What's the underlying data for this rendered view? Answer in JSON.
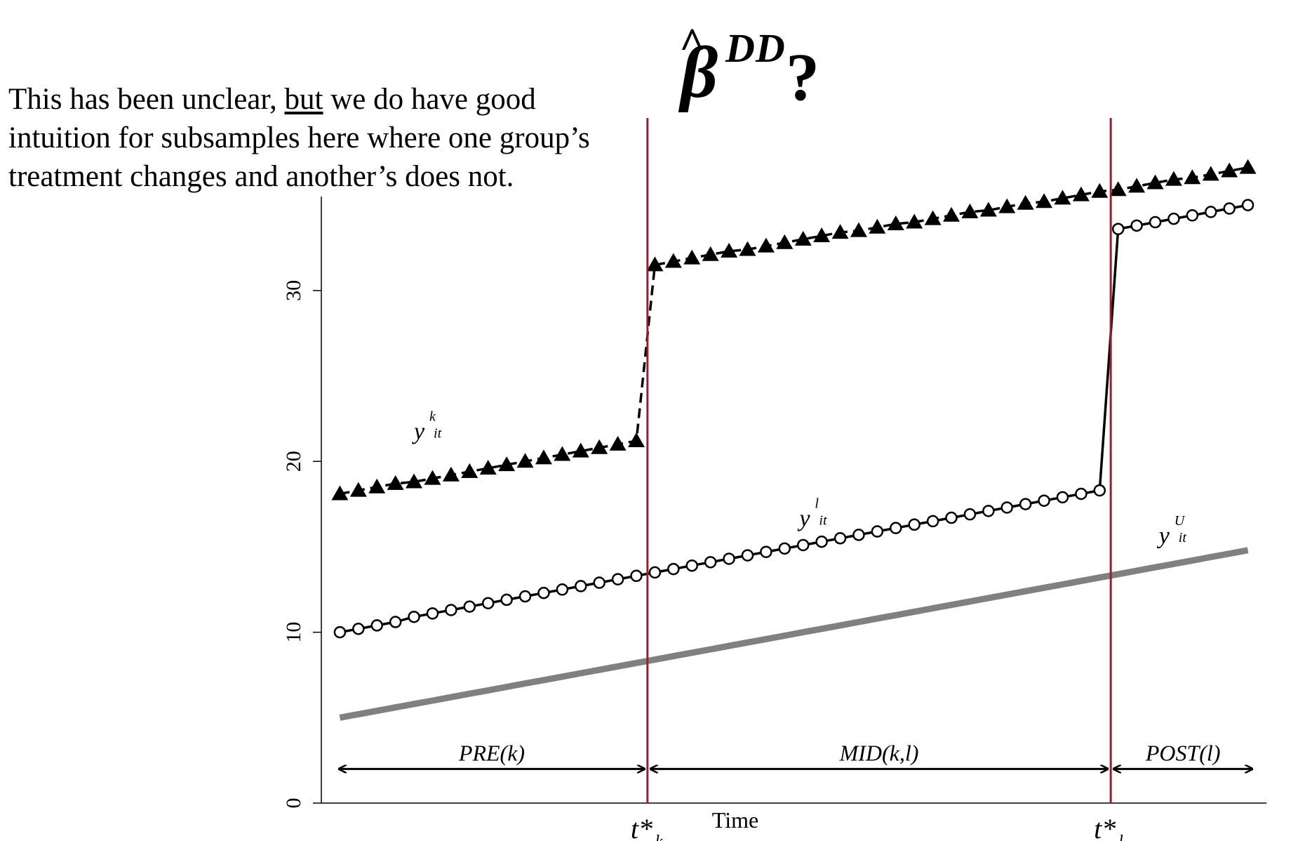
{
  "title": {
    "hat": "^",
    "symbol": "β",
    "superscript": "DD",
    "suffix": "?"
  },
  "intro": {
    "line1_before": "This has been unclear, ",
    "line1_underlined": "but",
    "line1_after": " we do have good",
    "line2": "intuition for subsamples here where one group’s",
    "line3": "treatment changes and another’s does not."
  },
  "chart_data": {
    "type": "line",
    "title": "",
    "xlabel": "Time",
    "ylabel": "",
    "ylim": [
      0,
      35.5
    ],
    "yticks": [
      0,
      10,
      20,
      30
    ],
    "xlim": [
      0,
      51
    ],
    "x": [
      1,
      2,
      3,
      4,
      5,
      6,
      7,
      8,
      9,
      10,
      11,
      12,
      13,
      14,
      15,
      16,
      17,
      18,
      19,
      20,
      21,
      22,
      23,
      24,
      25,
      26,
      27,
      28,
      29,
      30,
      31,
      32,
      33,
      34,
      35,
      36,
      37,
      38,
      39,
      40,
      41,
      42,
      43,
      44,
      45,
      46,
      47,
      48,
      49,
      50
    ],
    "series": [
      {
        "name": "y^k_it",
        "label_main": "y",
        "label_sup": "k",
        "label_sub": "it",
        "color": "#000000",
        "marker": "triangle",
        "line_style": "dashed",
        "values": [
          18.1,
          18.3,
          18.5,
          18.7,
          18.8,
          19.0,
          19.2,
          19.4,
          19.6,
          19.8,
          20.0,
          20.2,
          20.4,
          20.6,
          20.8,
          21.0,
          21.2,
          31.5,
          31.7,
          31.9,
          32.1,
          32.3,
          32.4,
          32.6,
          32.8,
          33.0,
          33.2,
          33.4,
          33.5,
          33.7,
          33.9,
          34.0,
          34.2,
          34.4,
          34.6,
          34.7,
          34.9,
          35.1,
          35.2,
          35.4,
          35.6,
          35.8,
          35.9,
          36.1,
          36.3,
          36.5,
          36.6,
          36.8,
          37.0,
          37.2
        ],
        "label_position": {
          "x": 5.0,
          "y": 21.3
        }
      },
      {
        "name": "y^l_it",
        "label_main": "y",
        "label_sup": "l",
        "label_sub": "it",
        "color": "#000000",
        "marker": "circle",
        "line_style": "solid",
        "values": [
          10.0,
          10.2,
          10.4,
          10.6,
          10.9,
          11.1,
          11.3,
          11.5,
          11.7,
          11.9,
          12.1,
          12.3,
          12.5,
          12.7,
          12.9,
          13.1,
          13.3,
          13.5,
          13.7,
          13.9,
          14.1,
          14.3,
          14.5,
          14.7,
          14.9,
          15.1,
          15.3,
          15.5,
          15.7,
          15.9,
          16.1,
          16.3,
          16.5,
          16.7,
          16.9,
          17.1,
          17.3,
          17.5,
          17.7,
          17.9,
          18.1,
          18.3,
          33.6,
          33.8,
          34.0,
          34.2,
          34.4,
          34.6,
          34.8,
          35.0
        ],
        "label_position": {
          "x": 25.8,
          "y": 16.2
        }
      },
      {
        "name": "y^U_it",
        "label_main": "y",
        "label_sup": "U",
        "label_sub": "it",
        "color": "#808080",
        "marker": "none",
        "line_style": "solid",
        "values": [
          5.0,
          5.2,
          5.4,
          5.6,
          5.8,
          6.0,
          6.2,
          6.4,
          6.6,
          6.8,
          7.0,
          7.2,
          7.4,
          7.6,
          7.8,
          8.0,
          8.2,
          8.4,
          8.6,
          8.8,
          9.0,
          9.2,
          9.4,
          9.6,
          9.8,
          10.0,
          10.2,
          10.4,
          10.6,
          10.8,
          11.0,
          11.2,
          11.4,
          11.6,
          11.8,
          12.0,
          12.2,
          12.4,
          12.6,
          12.8,
          13.0,
          13.2,
          13.4,
          13.6,
          13.8,
          14.0,
          14.2,
          14.4,
          14.6,
          14.8
        ],
        "label_position": {
          "x": 45.2,
          "y": 15.2
        }
      }
    ],
    "vlines": [
      {
        "x": 17.6,
        "color": "#9b1b30",
        "label_main": "t*",
        "label_sub": "k"
      },
      {
        "x": 42.6,
        "color": "#9b1b30",
        "label_main": "t*",
        "label_sub": "l"
      }
    ],
    "periods": [
      {
        "label": "PRE(k)",
        "x_start": 0.8,
        "x_end": 17.6,
        "y": 2.0
      },
      {
        "label": "MID(k,l)",
        "x_start": 17.6,
        "x_end": 42.6,
        "y": 2.0
      },
      {
        "label": "POST(l)",
        "x_start": 42.6,
        "x_end": 50.4,
        "y": 2.0
      }
    ],
    "grid": false,
    "legend": "none"
  }
}
